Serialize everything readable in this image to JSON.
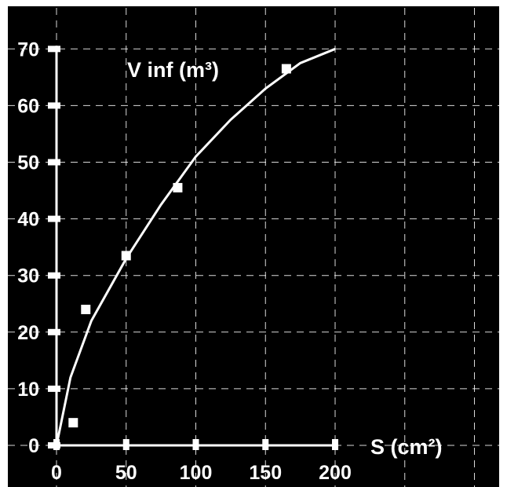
{
  "chart_data": {
    "type": "scatter",
    "title": "",
    "ylabel": "V inf (m³)",
    "xlabel": "S (cm²)",
    "xlim": [
      0,
      200
    ],
    "ylim": [
      0,
      70
    ],
    "x_ticks": [
      "0",
      "50",
      "100",
      "150",
      "200"
    ],
    "y_ticks": [
      "0",
      "10",
      "20",
      "30",
      "40",
      "50",
      "60",
      "70"
    ],
    "grid": true,
    "series": [
      {
        "points": [
          {
            "x": 12,
            "y": 4
          },
          {
            "x": 21,
            "y": 24
          },
          {
            "x": 50,
            "y": 33.5
          },
          {
            "x": 87,
            "y": 45.5
          },
          {
            "x": 165,
            "y": 66.5
          }
        ]
      }
    ],
    "fit_curve": {
      "x": [
        0,
        10,
        25,
        50,
        75,
        100,
        125,
        150,
        175,
        200
      ],
      "y": [
        0,
        12,
        22,
        33,
        42.5,
        51,
        57.5,
        63,
        67.5,
        70
      ]
    }
  },
  "colors": {
    "background": "#000000",
    "foreground": "#ffffff"
  }
}
